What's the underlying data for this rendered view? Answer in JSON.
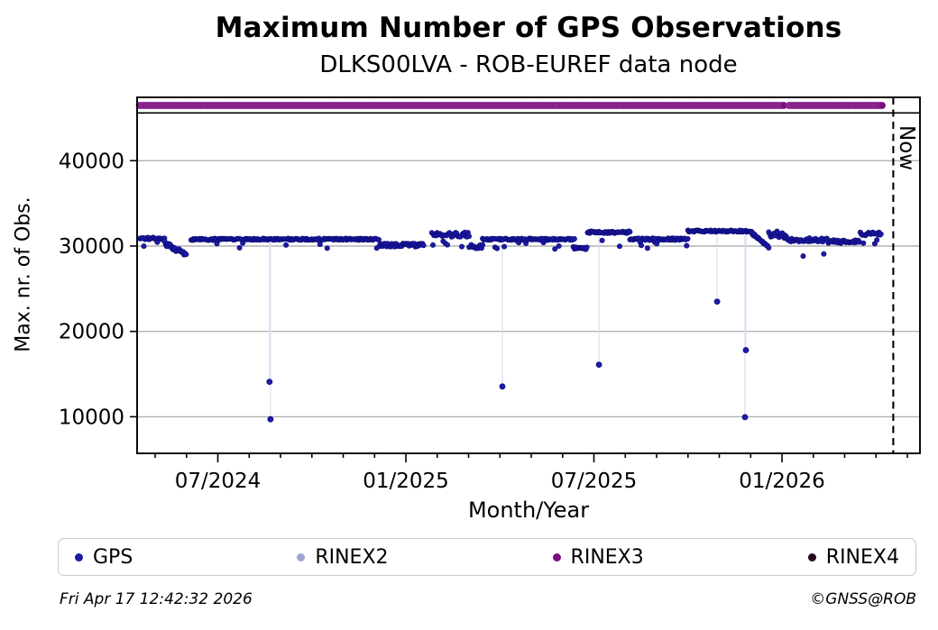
{
  "page": {
    "title": "Maximum Number of GPS Observations",
    "subtitle": "DLKS00LVA - ROB-EUREF data node"
  },
  "footer": {
    "timestamp": "Fri Apr 17 12:42:32 2026",
    "credit": "©GNSS@ROB"
  },
  "colors": {
    "grid": "#b2b2b2",
    "frame": "#000000",
    "connector": "#dcdcf2",
    "gps": "#1d1aa8",
    "gps_edge": "#0a0870",
    "rinex2": "#a2a2d5",
    "rinex3": "#7a0e7e",
    "rinex3_edge": "#b36cb8",
    "rinex4": "#23081f"
  },
  "chart_data": {
    "type": "scatter",
    "title": "Maximum Number of GPS Observations",
    "subtitle": "DLKS00LVA - ROB-EUREF data node",
    "xlabel": "Month/Year",
    "ylabel": "Max. nr. of Obs.",
    "x_axis": {
      "unit": "months_since_2024-01 (6.0 = 01 Jul 2024)",
      "range": [
        3.425,
        28.4
      ],
      "major_ticks": [
        {
          "m": 6,
          "label": "07/2024"
        },
        {
          "m": 12,
          "label": "01/2025"
        },
        {
          "m": 18,
          "label": "07/2025"
        },
        {
          "m": 24,
          "label": "01/2026"
        }
      ],
      "minor_ticks_every_month_from": 4,
      "minor_ticks_every_month_to": 28
    },
    "y_axis": {
      "range": [
        5700,
        47430
      ],
      "ticks": [
        10000,
        20000,
        30000,
        40000
      ],
      "grid": true
    },
    "now_marker": {
      "m": 27.55,
      "label": "Now",
      "style": "dashed-vertical-line"
    },
    "strip_divider_value": 45600,
    "series": [
      {
        "name": "GPS",
        "kind": "daily_scatter",
        "color": "#1d1aa8",
        "edge_color": "#0a0870",
        "points_per_month": 30.4,
        "baseline_segments": [
          {
            "from": 3.51,
            "to": 4.3,
            "level": 30900,
            "jitter": 120,
            "dip_chance": 0.04,
            "dip_level": 30350
          },
          {
            "from": 4.3,
            "to": 5.0,
            "level": 30400,
            "level_end": 28900,
            "jitter": 300
          },
          {
            "from": 5.15,
            "to": 6.3,
            "level": 30780,
            "jitter": 110,
            "dip_chance": 0.05,
            "dip_level": 30150
          },
          {
            "from": 6.3,
            "to": 11.15,
            "level": 30800,
            "jitter": 100,
            "dip_chance": 0.05,
            "dip_level": 30120
          },
          {
            "from": 11.15,
            "to": 12.58,
            "level": 30150,
            "jitter": 230
          },
          {
            "from": 12.83,
            "to": 14.02,
            "level": 31350,
            "jitter": 280,
            "dip_chance": 0.08,
            "dip_level": 30300
          },
          {
            "from": 14.02,
            "to": 14.45,
            "level": 29950,
            "jitter": 220
          },
          {
            "from": 14.45,
            "to": 17.38,
            "level": 30800,
            "jitter": 110,
            "dip_chance": 0.06,
            "dip_level": 30050
          },
          {
            "from": 17.38,
            "to": 17.8,
            "level": 29750,
            "jitter": 140
          },
          {
            "from": 17.8,
            "to": 19.15,
            "level": 31620,
            "jitter": 120,
            "dip_chance": 0.03,
            "dip_level": 30350
          },
          {
            "from": 19.15,
            "to": 21.0,
            "level": 30800,
            "jitter": 140,
            "dip_chance": 0.1,
            "dip_level": 30080
          },
          {
            "from": 21.0,
            "to": 23.05,
            "level": 31760,
            "jitter": 100
          },
          {
            "from": 23.05,
            "to": 23.58,
            "level": 31450,
            "level_end": 29900,
            "jitter": 140
          },
          {
            "from": 23.58,
            "to": 24.15,
            "level": 31350,
            "jitter": 430
          },
          {
            "from": 24.15,
            "to": 25.45,
            "level": 30720,
            "jitter": 230,
            "dip_chance": 0.07,
            "dip_level": 29000
          },
          {
            "from": 25.45,
            "to": 26.5,
            "level": 30520,
            "jitter": 190
          },
          {
            "from": 26.5,
            "to": 27.19,
            "level": 31430,
            "jitter": 190,
            "dip_chance": 0.12,
            "dip_level": 30620
          }
        ],
        "outliers": [
          {
            "m": 7.65,
            "value": 14100,
            "from": 30800
          },
          {
            "m": 7.68,
            "value": 9700,
            "from": 30800
          },
          {
            "m": 15.08,
            "value": 13550,
            "from": 30800
          },
          {
            "m": 18.16,
            "value": 16100,
            "from": 31600
          },
          {
            "m": 21.93,
            "value": 23500,
            "from": 31760
          },
          {
            "m": 22.82,
            "value": 9950,
            "from": 31760
          },
          {
            "m": 22.85,
            "value": 17800,
            "from": 31760
          }
        ]
      },
      {
        "name": "RINEX2",
        "kind": "no_visible_points",
        "color": "#a2a2d5"
      },
      {
        "name": "RINEX3",
        "kind": "availability_band",
        "color": "#7a0e7e",
        "edge_color": "#b36cb8",
        "band_value": 46470,
        "band_range": [
          3.5,
          27.2
        ],
        "gaps": [
          [
            24.08,
            24.22
          ]
        ]
      },
      {
        "name": "RINEX4",
        "kind": "no_visible_points",
        "color": "#23081f"
      }
    ],
    "legend": {
      "position": "bottom",
      "entries": [
        "GPS",
        "RINEX2",
        "RINEX3",
        "RINEX4"
      ]
    }
  }
}
